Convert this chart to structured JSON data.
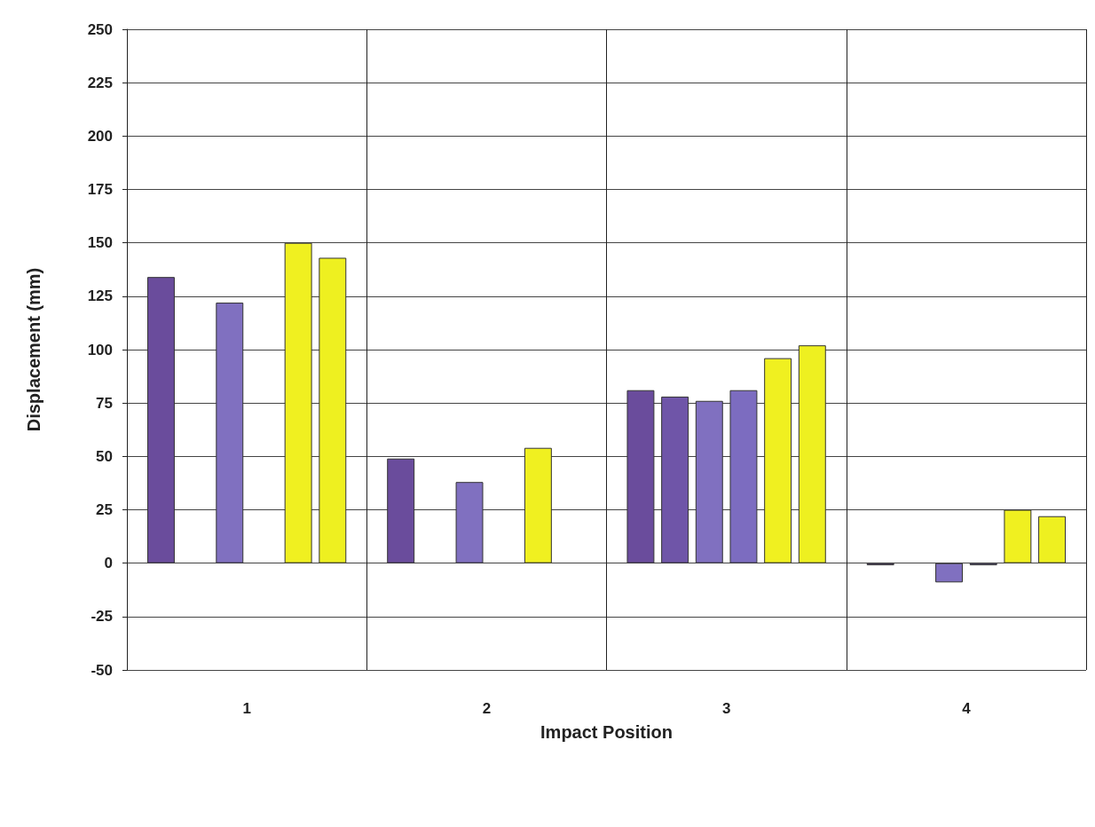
{
  "chart_data": {
    "type": "bar",
    "xlabel": "Impact Position",
    "ylabel": "Displacement (mm)",
    "categories": [
      "1",
      "2",
      "3",
      "4"
    ],
    "series": [
      {
        "color": "#6a4c9c",
        "values": [
          134,
          49,
          81,
          -1
        ]
      },
      {
        "color": "#6f55a8",
        "values": [
          null,
          null,
          78,
          null
        ]
      },
      {
        "color": "#8070c0",
        "values": [
          122,
          38,
          76,
          -9
        ]
      },
      {
        "color": "#7c6cc0",
        "values": [
          null,
          null,
          81,
          -1
        ]
      },
      {
        "color": "#f0f020",
        "values": [
          150,
          54,
          96,
          25
        ]
      },
      {
        "color": "#eef020",
        "values": [
          143,
          null,
          102,
          22
        ]
      }
    ],
    "ylim": [
      -50,
      250
    ],
    "yticks": [
      -50,
      -25,
      0,
      25,
      50,
      75,
      100,
      125,
      150,
      175,
      200,
      225,
      250
    ],
    "grid": true
  }
}
